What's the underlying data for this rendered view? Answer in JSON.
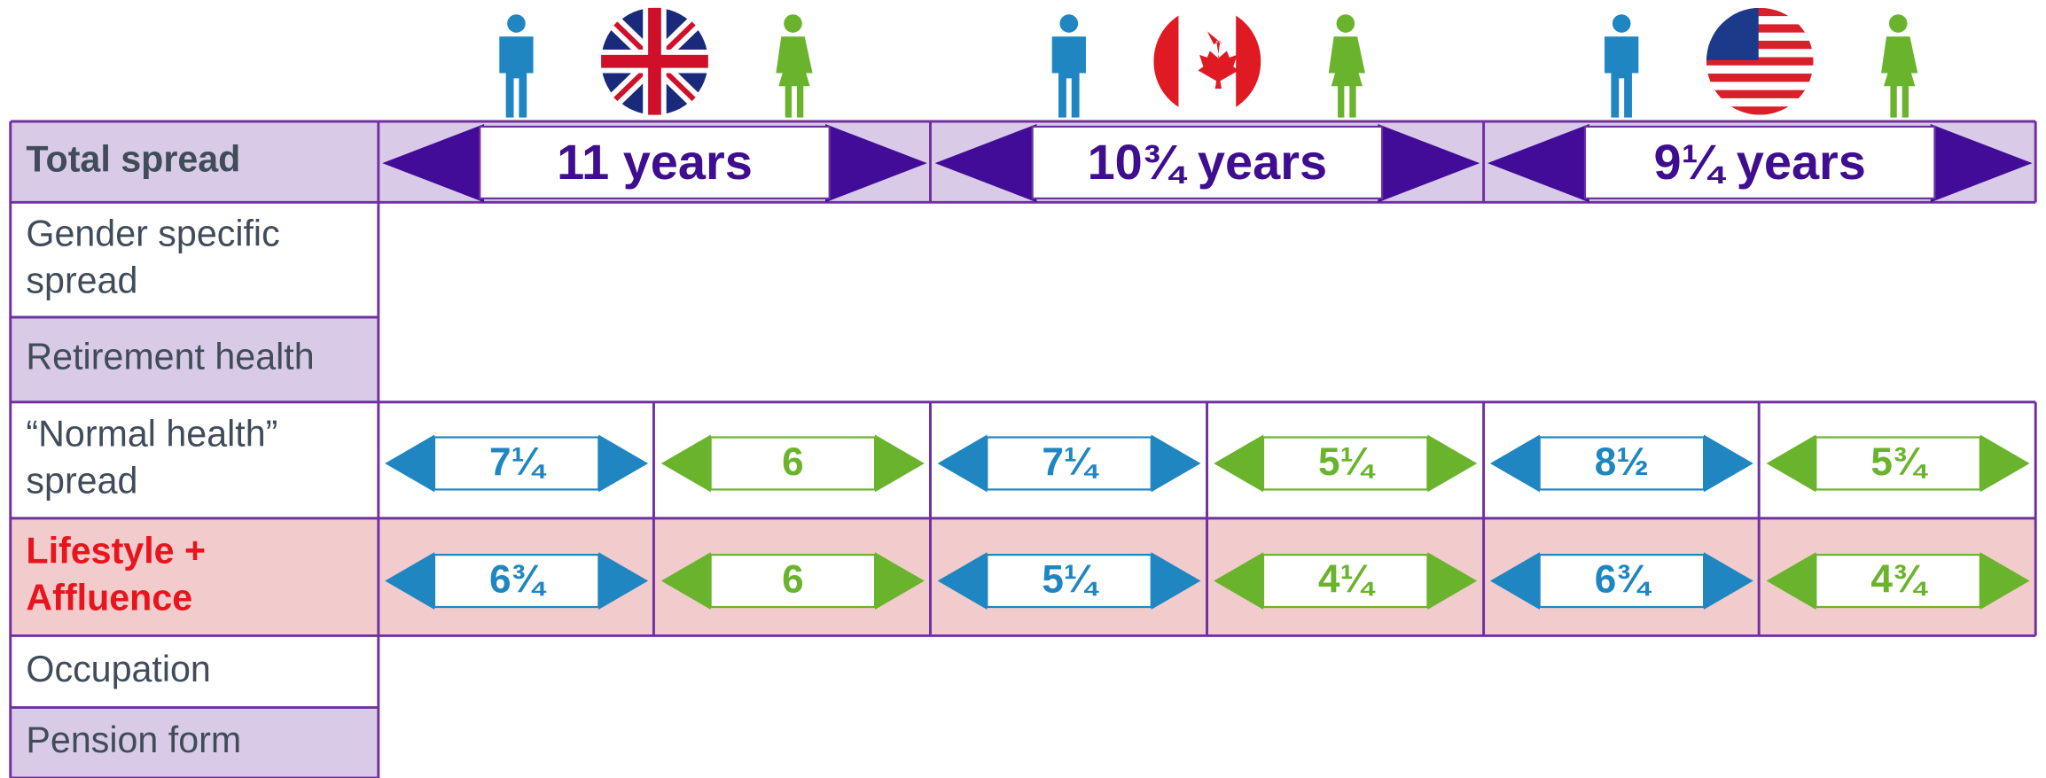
{
  "rows": [
    [
      "Total spread"
    ],
    [
      "Gender specific",
      "spread"
    ],
    [
      "Retirement health"
    ],
    [
      "“Normal health”",
      "spread"
    ],
    [
      "Lifestyle +",
      "Affluence"
    ],
    [
      "Occupation"
    ],
    [
      "Pension form"
    ]
  ],
  "countries": [
    {
      "total": "11 years",
      "normal": [
        "7¼",
        "6"
      ],
      "lifestyle": [
        "6¾",
        "6"
      ]
    },
    {
      "total": "10¾ years",
      "normal": [
        "7¼",
        "5¼"
      ],
      "lifestyle": [
        "5¼",
        "4¼"
      ]
    },
    {
      "total": "9¼ years",
      "normal": [
        "8½",
        "5¾"
      ],
      "lifestyle": [
        "6¾",
        "4¾"
      ]
    }
  ]
}
